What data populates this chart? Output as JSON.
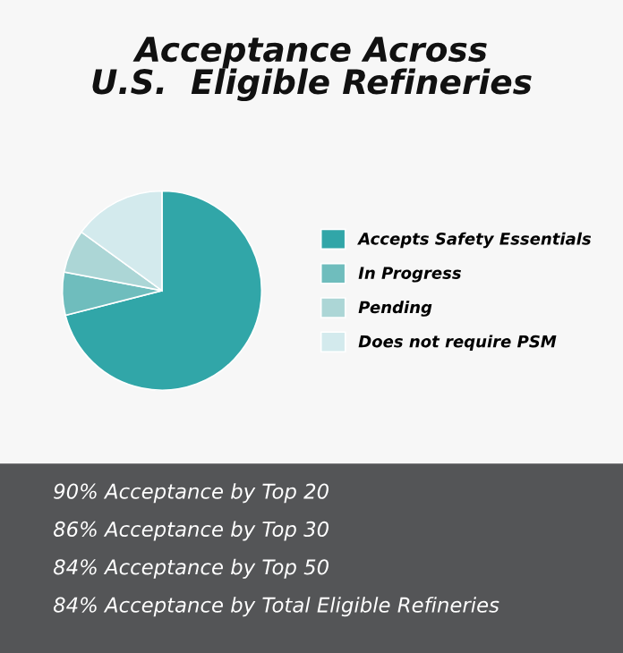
{
  "chart_data": {
    "type": "pie",
    "title": "Acceptance Across\nU.S.  Eligible Refineries",
    "categories": [
      "Accepts Safety Essentials",
      "In Progress",
      "Pending",
      "Does not require PSM"
    ],
    "values": [
      71,
      7,
      7,
      15
    ],
    "colors": [
      "#31a6a8",
      "#6fbdbd",
      "#acd6d6",
      "#d3eaed"
    ],
    "legend": "right",
    "annotations": [
      "90% Acceptance by Top 20",
      "86% Acceptance by Top 30",
      "84% Acceptance by Top 50",
      "84% Acceptance by Total Eligible Refineries"
    ]
  }
}
